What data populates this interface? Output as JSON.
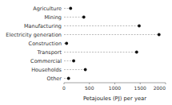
{
  "chart_data": {
    "type": "lollipop",
    "orientation": "horizontal",
    "categories": [
      "Agriculture",
      "Mining",
      "Manufacturing",
      "Electricity generation",
      "Construction",
      "Transport",
      "Commercial",
      "Households",
      "Other"
    ],
    "values": [
      130,
      390,
      1480,
      1870,
      50,
      1430,
      190,
      420,
      90
    ],
    "xlim": [
      0,
      2000
    ],
    "xticks": [
      0,
      500,
      1000,
      1500,
      2000
    ],
    "xlabel": "Petajoules (PJ) per year",
    "color": "#111111",
    "line_style": "dashed",
    "marker": "circle",
    "grid": false
  }
}
